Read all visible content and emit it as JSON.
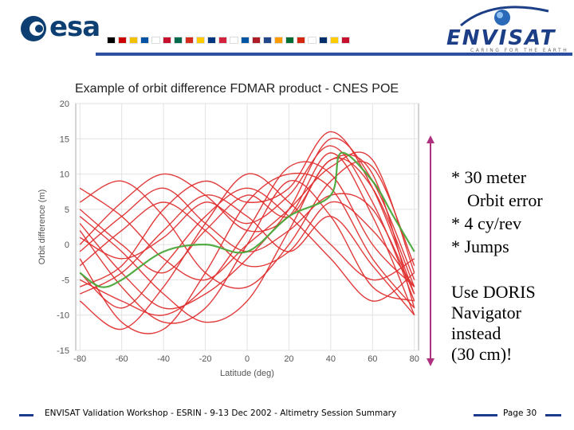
{
  "header": {
    "esa_logo_text": "esa",
    "envisat_logo_text": "ENVISAT",
    "envisat_tagline": "CARING FOR THE EARTH",
    "flag_colors": [
      "#000000",
      "#cc0000",
      "#f2c200",
      "#0052a5",
      "#ffffff",
      "#c8102e",
      "#006a4e",
      "#d52b1e",
      "#fecb00",
      "#003580",
      "#d4213d",
      "#ffffff",
      "#0055a4",
      "#ae1c28",
      "#21468b",
      "#ff9b00",
      "#006c35",
      "#d62612",
      "#ffffff",
      "#002f6c",
      "#fecc00",
      "#c8102e"
    ],
    "accent_line_color": "#2c4fa1"
  },
  "chart_data": {
    "type": "line",
    "title": "Example of orbit difference FDMAR product - CNES POE",
    "xlabel": "Latitude (deg)",
    "ylabel": "Orbit difference (m)",
    "xlim": [
      -82,
      82
    ],
    "ylim": [
      -15,
      20
    ],
    "xticks": [
      "-80",
      "-60",
      "-40",
      "-20",
      "0",
      "20",
      "40",
      "60",
      "80"
    ],
    "yticks": [
      "-15",
      "-10",
      "-5",
      "0",
      "5",
      "10",
      "15",
      "20"
    ],
    "grid": true,
    "series": [
      {
        "color": "#e03030",
        "x": [
          -80,
          -60,
          -40,
          -20,
          0,
          20,
          40,
          60,
          80
        ],
        "y": [
          -4,
          -9,
          -3,
          4,
          8,
          4,
          -2,
          -8,
          -4
        ]
      },
      {
        "color": "#e03030",
        "x": [
          -80,
          -60,
          -40,
          -20,
          0,
          20,
          40,
          60,
          80
        ],
        "y": [
          4,
          -1,
          -7,
          -11,
          -8,
          2,
          12,
          8,
          -6
        ]
      },
      {
        "color": "#e03030",
        "x": [
          -80,
          -60,
          -40,
          -20,
          0,
          20,
          40,
          60,
          80
        ],
        "y": [
          0,
          6,
          10,
          7,
          2,
          4,
          13,
          4,
          -10
        ]
      },
      {
        "color": "#e03030",
        "x": [
          -80,
          -60,
          -40,
          -20,
          0,
          20,
          40,
          60,
          80
        ],
        "y": [
          -2,
          -11,
          -12,
          -4,
          6,
          10,
          8,
          -2,
          -9
        ]
      },
      {
        "color": "#e03030",
        "x": [
          -80,
          -60,
          -40,
          -20,
          0,
          20,
          40,
          60,
          80
        ],
        "y": [
          6,
          9,
          4,
          -4,
          -6,
          0,
          9,
          11,
          -3
        ]
      },
      {
        "color": "#e03030",
        "x": [
          -80,
          -60,
          -40,
          -20,
          0,
          20,
          40,
          60,
          80
        ],
        "y": [
          -6,
          -3,
          5,
          9,
          6,
          8,
          16,
          8,
          -7
        ]
      },
      {
        "color": "#e03030",
        "x": [
          -80,
          -60,
          -40,
          -20,
          0,
          20,
          40,
          60,
          80
        ],
        "y": [
          2,
          -6,
          -11,
          -9,
          0,
          9,
          4,
          -6,
          -8
        ]
      },
      {
        "color": "#e03030",
        "x": [
          -80,
          -60,
          -40,
          -20,
          0,
          20,
          40,
          60,
          80
        ],
        "y": [
          -8,
          -12,
          -6,
          3,
          10,
          6,
          0,
          -5,
          -2
        ]
      },
      {
        "color": "#e03030",
        "x": [
          -80,
          -60,
          -40,
          -20,
          0,
          20,
          40,
          60,
          80
        ],
        "y": [
          8,
          4,
          -2,
          -5,
          0,
          5,
          11,
          12,
          -4
        ]
      },
      {
        "color": "#e03030",
        "x": [
          -80,
          -60,
          -40,
          -20,
          0,
          20,
          40,
          60,
          80
        ],
        "y": [
          -3,
          2,
          6,
          2,
          -3,
          -1,
          6,
          2,
          -6
        ]
      },
      {
        "color": "#e03030",
        "x": [
          -80,
          -60,
          -40,
          -20,
          0,
          20,
          40,
          60,
          80
        ],
        "y": [
          1,
          -2,
          1,
          6,
          3,
          7,
          14,
          6,
          -8
        ]
      },
      {
        "color": "#e03030",
        "x": [
          -80,
          -60,
          -40,
          -20,
          0,
          20,
          40,
          60,
          80
        ],
        "y": [
          -5,
          -8,
          -10,
          -6,
          2,
          11,
          10,
          0,
          -6
        ]
      },
      {
        "color": "#e03030",
        "x": [
          -80,
          -60,
          -40,
          -20,
          0,
          20,
          40,
          60,
          80
        ],
        "y": [
          5,
          0,
          -4,
          2,
          7,
          4,
          12,
          10,
          -9
        ]
      },
      {
        "color": "#e03030",
        "x": [
          -80,
          -60,
          -40,
          -20,
          0,
          20,
          40,
          60,
          80
        ],
        "y": [
          -7,
          -4,
          2,
          7,
          4,
          -1,
          4,
          -3,
          -10
        ]
      },
      {
        "color": "#e03030",
        "x": [
          -80,
          -60,
          -40,
          -20,
          0,
          20,
          40,
          60,
          80
        ],
        "y": [
          3,
          -4,
          -9,
          -7,
          -2,
          5,
          15,
          9,
          -5
        ]
      },
      {
        "color": "#e03030",
        "x": [
          -80,
          -60,
          -40,
          -20,
          0,
          20,
          40,
          60,
          80
        ],
        "y": [
          -1,
          4,
          8,
          3,
          -1,
          2,
          7,
          5,
          -7
        ]
      },
      {
        "color": "#4aa83a",
        "x": [
          -80,
          -70,
          -60,
          -40,
          -20,
          0,
          20,
          40,
          45,
          60,
          70,
          80
        ],
        "y": [
          -4,
          -6,
          -5,
          -1,
          0,
          -1,
          4,
          7,
          13,
          9,
          4,
          -1
        ]
      }
    ]
  },
  "annotations": {
    "bullets": [
      "* 30 meter",
      "Orbit error",
      "* 4 cy/rev",
      "* Jumps"
    ],
    "note": [
      "Use DORIS",
      "Navigator",
      "instead",
      "(30 cm)!"
    ],
    "arrow_color": "#b03080"
  },
  "footer": {
    "text": "ENVISAT Validation Workshop - ESRIN - 9-13 Dec 2002 - Altimetry Session Summary",
    "page": "Page 30"
  }
}
